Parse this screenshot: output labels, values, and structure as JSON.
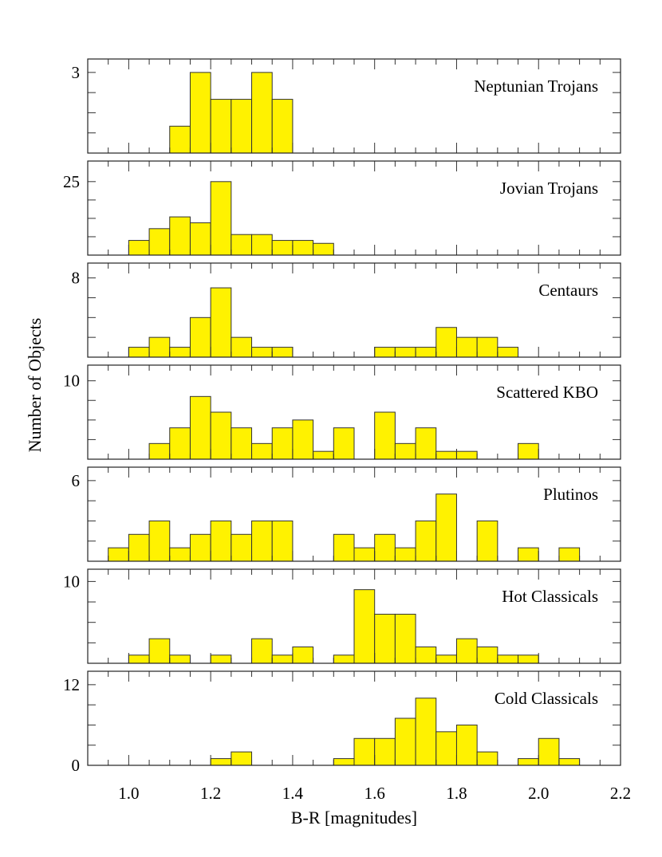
{
  "chart_data": {
    "type": "bar",
    "xlabel": "B-R [magnitudes]",
    "ylabel": "Number of Objects",
    "xlim": [
      0.9,
      2.2
    ],
    "xticks": [
      1.0,
      1.2,
      1.4,
      1.6,
      1.8,
      2.0,
      2.2
    ],
    "xtick_labels": [
      "1.0",
      "1.2",
      "1.4",
      "1.6",
      "1.8",
      "2.0",
      "2.2"
    ],
    "bin_width": 0.05,
    "panels": [
      {
        "name": "Neptunian Trojans",
        "ymax": 3,
        "ylim": [
          0,
          3.5
        ],
        "ytick_labels": [
          {
            "value": 3,
            "label": "3"
          }
        ],
        "bins": [
          [
            1.1,
            1
          ],
          [
            1.15,
            3
          ],
          [
            1.2,
            2
          ],
          [
            1.25,
            2
          ],
          [
            1.3,
            3
          ],
          [
            1.35,
            2
          ]
        ]
      },
      {
        "name": "Jovian Trojans",
        "ymax": 25,
        "ylim": [
          0,
          32
        ],
        "ytick_labels": [
          {
            "value": 25,
            "label": "25"
          }
        ],
        "bins": [
          [
            1.0,
            5
          ],
          [
            1.05,
            9
          ],
          [
            1.1,
            13
          ],
          [
            1.15,
            11
          ],
          [
            1.2,
            25
          ],
          [
            1.25,
            7
          ],
          [
            1.3,
            7
          ],
          [
            1.35,
            5
          ],
          [
            1.4,
            5
          ],
          [
            1.45,
            4
          ]
        ]
      },
      {
        "name": "Centaurs",
        "ymax": 8,
        "ylim": [
          0,
          9.5
        ],
        "ytick_labels": [
          {
            "value": 8,
            "label": "8"
          }
        ],
        "bins": [
          [
            1.0,
            1
          ],
          [
            1.05,
            2
          ],
          [
            1.1,
            1
          ],
          [
            1.15,
            4
          ],
          [
            1.2,
            7
          ],
          [
            1.25,
            2
          ],
          [
            1.3,
            1
          ],
          [
            1.35,
            1
          ],
          [
            1.6,
            1
          ],
          [
            1.65,
            1
          ],
          [
            1.7,
            1
          ],
          [
            1.75,
            3
          ],
          [
            1.8,
            2
          ],
          [
            1.85,
            2
          ],
          [
            1.9,
            1
          ]
        ]
      },
      {
        "name": "Scattered KBO",
        "ymax": 10,
        "ylim": [
          0,
          12
        ],
        "ytick_labels": [
          {
            "value": 10,
            "label": "10"
          }
        ],
        "bins": [
          [
            1.05,
            2
          ],
          [
            1.1,
            4
          ],
          [
            1.15,
            8
          ],
          [
            1.2,
            6
          ],
          [
            1.25,
            4
          ],
          [
            1.3,
            2
          ],
          [
            1.35,
            4
          ],
          [
            1.4,
            5
          ],
          [
            1.45,
            1
          ],
          [
            1.5,
            4
          ],
          [
            1.6,
            6
          ],
          [
            1.65,
            2
          ],
          [
            1.7,
            4
          ],
          [
            1.75,
            1
          ],
          [
            1.8,
            1
          ],
          [
            1.95,
            2
          ]
        ]
      },
      {
        "name": "Plutinos",
        "ymax": 6,
        "ylim": [
          0,
          7
        ],
        "ytick_labels": [
          {
            "value": 6,
            "label": "6"
          }
        ],
        "bins": [
          [
            0.95,
            1
          ],
          [
            1.0,
            2
          ],
          [
            1.05,
            3
          ],
          [
            1.1,
            1
          ],
          [
            1.15,
            2
          ],
          [
            1.2,
            3
          ],
          [
            1.25,
            2
          ],
          [
            1.3,
            3
          ],
          [
            1.35,
            3
          ],
          [
            1.5,
            2
          ],
          [
            1.55,
            1
          ],
          [
            1.6,
            2
          ],
          [
            1.65,
            1
          ],
          [
            1.7,
            3
          ],
          [
            1.75,
            5
          ],
          [
            1.85,
            3
          ],
          [
            1.95,
            1
          ],
          [
            2.05,
            1
          ]
        ]
      },
      {
        "name": "Hot Classicals",
        "ymax": 10,
        "ylim": [
          0,
          11.5
        ],
        "ytick_labels": [
          {
            "value": 10,
            "label": "10"
          }
        ],
        "bins": [
          [
            1.0,
            1
          ],
          [
            1.05,
            3
          ],
          [
            1.1,
            1
          ],
          [
            1.2,
            1
          ],
          [
            1.3,
            3
          ],
          [
            1.35,
            1
          ],
          [
            1.4,
            2
          ],
          [
            1.5,
            1
          ],
          [
            1.55,
            9
          ],
          [
            1.6,
            6
          ],
          [
            1.65,
            6
          ],
          [
            1.7,
            2
          ],
          [
            1.75,
            1
          ],
          [
            1.8,
            3
          ],
          [
            1.85,
            2
          ],
          [
            1.9,
            1
          ],
          [
            1.95,
            1
          ]
        ]
      },
      {
        "name": "Cold Classicals",
        "ymax": 12,
        "ylim": [
          0,
          14
        ],
        "ytick_labels": [
          {
            "value": 12,
            "label": "12"
          },
          {
            "value": 0,
            "label": "0"
          }
        ],
        "bins": [
          [
            1.2,
            1
          ],
          [
            1.25,
            2
          ],
          [
            1.5,
            1
          ],
          [
            1.55,
            4
          ],
          [
            1.6,
            4
          ],
          [
            1.65,
            7
          ],
          [
            1.7,
            10
          ],
          [
            1.75,
            5
          ],
          [
            1.8,
            6
          ],
          [
            1.85,
            2
          ],
          [
            1.95,
            1
          ],
          [
            2.0,
            4
          ],
          [
            2.05,
            1
          ]
        ]
      }
    ]
  }
}
